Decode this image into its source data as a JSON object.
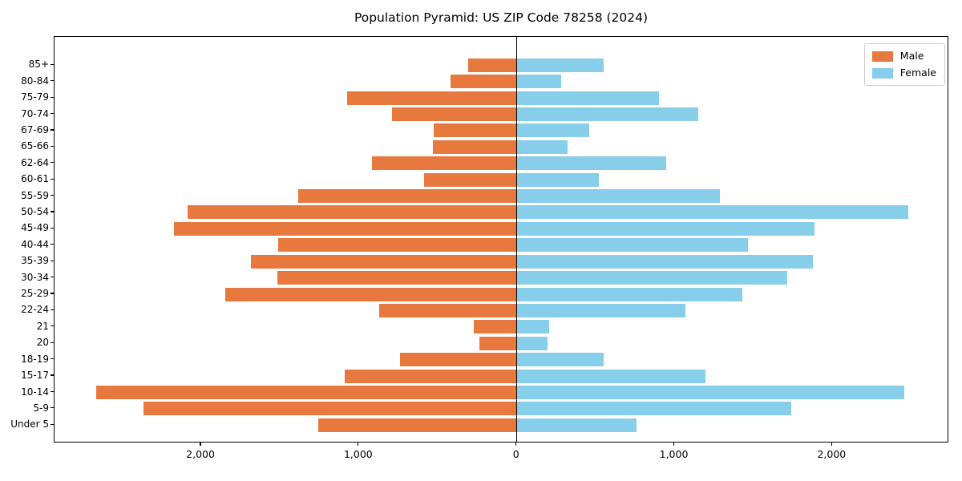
{
  "chart_data": {
    "type": "bar",
    "subtype": "population-pyramid",
    "title": "Population Pyramid: US ZIP Code 78258 (2024)",
    "orientation": "horizontal",
    "categories_top_to_bottom": [
      "85+",
      "80-84",
      "75-79",
      "70-74",
      "67-69",
      "65-66",
      "62-64",
      "60-61",
      "55-59",
      "50-54",
      "45-49",
      "40-44",
      "35-39",
      "30-34",
      "25-29",
      "22-24",
      "21",
      "20",
      "18-19",
      "15-17",
      "10-14",
      "5-9",
      "Under 5"
    ],
    "series": [
      {
        "name": "Male",
        "side": "left",
        "color": "#e8793e",
        "values": [
          305,
          415,
          1070,
          785,
          520,
          530,
          915,
          585,
          1385,
          2085,
          2170,
          1510,
          1685,
          1515,
          1845,
          870,
          270,
          230,
          735,
          1090,
          2665,
          2365,
          1255
        ]
      },
      {
        "name": "Female",
        "side": "right",
        "color": "#87ceeb",
        "values": [
          555,
          285,
          910,
          1155,
          465,
          330,
          955,
          525,
          1295,
          2490,
          1895,
          1475,
          1885,
          1720,
          1435,
          1075,
          210,
          200,
          555,
          1205,
          2465,
          1745,
          765
        ]
      }
    ],
    "xlim": [
      -2930,
      2740
    ],
    "x_tick_values": [
      -2000,
      -1000,
      0,
      1000,
      2000
    ],
    "x_tick_labels": [
      "2,000",
      "1,000",
      "0",
      "1,000",
      "2,000"
    ],
    "xlabel": "",
    "ylabel": "",
    "grid": false,
    "legend_position": "upper right",
    "axis_color": "#000000"
  }
}
